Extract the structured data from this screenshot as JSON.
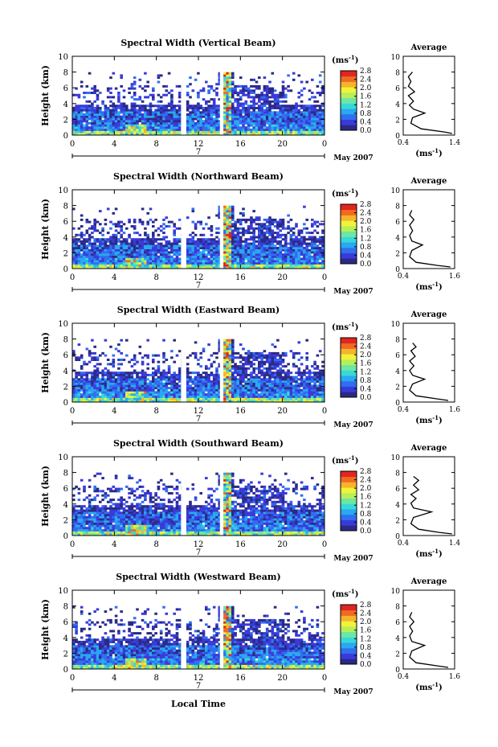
{
  "figure": {
    "xlabel": "Local Time",
    "date_label": "May 2007",
    "day_label": "7",
    "colorbar_unit": "(ms",
    "colorbar_exp": "-1",
    "colorbar_ticks": [
      "0.0",
      "0.4",
      "0.8",
      "1.2",
      "1.6",
      "2.0",
      "2.4",
      "2.8"
    ],
    "colorbar_colors": [
      "#2a2a86",
      "#3a3ad8",
      "#2f6ff0",
      "#2aa8f0",
      "#38d8d8",
      "#6ee6a4",
      "#b7ef5a",
      "#f2f23a",
      "#f5b42b",
      "#f06a22",
      "#e0261e"
    ],
    "avg_title": "Average",
    "avg_unit_open": "(ms",
    "avg_unit_exp": "-1",
    "avg_unit_close": ")"
  },
  "chart_data": [
    {
      "type": "heatmap",
      "title": "Spectral Width (Vertical Beam)",
      "ylabel": "Height (km)",
      "xlabel": "Local Time",
      "x_ticks": [
        "0",
        "4",
        "8",
        "12",
        "16",
        "20",
        "0"
      ],
      "y_ticks": [
        "0",
        "2",
        "4",
        "6",
        "8",
        "10"
      ],
      "xlim": [
        0,
        24
      ],
      "ylim": [
        0,
        10
      ],
      "colorbar_range": [
        0.0,
        2.8
      ],
      "gaps_hours": [
        10.5,
        14.2
      ],
      "profile": {
        "title": "Average",
        "xlim": [
          0.4,
          1.4
        ],
        "x_ticks": [
          "0.4",
          "1.4"
        ],
        "y_ticks": [
          "0",
          "2",
          "4",
          "6",
          "8",
          "10"
        ],
        "points": [
          [
            1.35,
            0.2
          ],
          [
            1.2,
            0.4
          ],
          [
            0.75,
            0.8
          ],
          [
            0.55,
            1.5
          ],
          [
            0.58,
            2.2
          ],
          [
            0.82,
            2.8
          ],
          [
            0.6,
            3.3
          ],
          [
            0.52,
            3.8
          ],
          [
            0.6,
            4.3
          ],
          [
            0.5,
            5.0
          ],
          [
            0.62,
            5.5
          ],
          [
            0.5,
            6.2
          ],
          [
            0.55,
            6.8
          ],
          [
            0.5,
            7.4
          ],
          [
            0.58,
            8.0
          ]
        ]
      }
    },
    {
      "type": "heatmap",
      "title": "Spectral Width (Northward Beam)",
      "ylabel": "Height (km)",
      "xlabel": "Local Time",
      "x_ticks": [
        "0",
        "4",
        "8",
        "12",
        "16",
        "20",
        "0"
      ],
      "y_ticks": [
        "0",
        "2",
        "4",
        "6",
        "8",
        "10"
      ],
      "xlim": [
        0,
        24
      ],
      "ylim": [
        0,
        10
      ],
      "colorbar_range": [
        0.0,
        2.8
      ],
      "gaps_hours": [
        10.5,
        14.2
      ],
      "profile": {
        "title": "Average",
        "xlim": [
          0.4,
          1.6
        ],
        "x_ticks": [
          "0.4",
          "1.6"
        ],
        "y_ticks": [
          "0",
          "2",
          "4",
          "6",
          "8",
          "10"
        ],
        "points": [
          [
            1.5,
            0.2
          ],
          [
            1.2,
            0.4
          ],
          [
            0.7,
            0.8
          ],
          [
            0.55,
            1.5
          ],
          [
            0.6,
            2.3
          ],
          [
            0.85,
            3.0
          ],
          [
            0.6,
            3.5
          ],
          [
            0.55,
            4.2
          ],
          [
            0.62,
            4.8
          ],
          [
            0.55,
            5.5
          ],
          [
            0.65,
            6.2
          ],
          [
            0.55,
            6.8
          ],
          [
            0.6,
            7.4
          ]
        ]
      }
    },
    {
      "type": "heatmap",
      "title": "Spectral Width (Eastward Beam)",
      "ylabel": "Height (km)",
      "xlabel": "Local Time",
      "x_ticks": [
        "0",
        "4",
        "8",
        "12",
        "16",
        "20",
        "0"
      ],
      "y_ticks": [
        "0",
        "2",
        "4",
        "6",
        "8",
        "10"
      ],
      "xlim": [
        0,
        24
      ],
      "ylim": [
        0,
        10
      ],
      "colorbar_range": [
        0.0,
        2.8
      ],
      "gaps_hours": [
        10.5,
        14.2
      ],
      "profile": {
        "title": "Average",
        "xlim": [
          0.4,
          1.6
        ],
        "x_ticks": [
          "0.4",
          "1.6"
        ],
        "y_ticks": [
          "0",
          "2",
          "4",
          "6",
          "8",
          "10"
        ],
        "points": [
          [
            1.45,
            0.2
          ],
          [
            1.2,
            0.4
          ],
          [
            0.7,
            0.8
          ],
          [
            0.55,
            1.5
          ],
          [
            0.62,
            2.3
          ],
          [
            0.9,
            2.9
          ],
          [
            0.62,
            3.4
          ],
          [
            0.55,
            4.0
          ],
          [
            0.65,
            4.6
          ],
          [
            0.55,
            5.2
          ],
          [
            0.68,
            5.8
          ],
          [
            0.58,
            6.5
          ],
          [
            0.7,
            7.0
          ],
          [
            0.62,
            7.5
          ]
        ]
      }
    },
    {
      "type": "heatmap",
      "title": "Spectral Width (Southward Beam)",
      "ylabel": "Height (km)",
      "xlabel": "Local Time",
      "x_ticks": [
        "0",
        "4",
        "8",
        "12",
        "16",
        "20",
        "0"
      ],
      "y_ticks": [
        "0",
        "2",
        "4",
        "6",
        "8",
        "10"
      ],
      "xlim": [
        0,
        24
      ],
      "ylim": [
        0,
        10
      ],
      "colorbar_range": [
        0.0,
        2.8
      ],
      "gaps_hours": [
        10.5,
        14.2
      ],
      "profile": {
        "title": "Average",
        "xlim": [
          0.4,
          1.4
        ],
        "x_ticks": [
          "0.4",
          "1.4"
        ],
        "y_ticks": [
          "0",
          "2",
          "4",
          "6",
          "8",
          "10"
        ],
        "points": [
          [
            1.35,
            0.2
          ],
          [
            1.1,
            0.4
          ],
          [
            0.7,
            0.8
          ],
          [
            0.55,
            1.5
          ],
          [
            0.6,
            2.3
          ],
          [
            0.95,
            3.0
          ],
          [
            0.6,
            3.5
          ],
          [
            0.55,
            4.1
          ],
          [
            0.65,
            4.7
          ],
          [
            0.55,
            5.2
          ],
          [
            0.7,
            5.8
          ],
          [
            0.6,
            6.4
          ],
          [
            0.7,
            7.0
          ],
          [
            0.6,
            7.5
          ]
        ]
      }
    },
    {
      "type": "heatmap",
      "title": "Spectral Width (Westward Beam)",
      "ylabel": "Height (km)",
      "xlabel": "Local Time",
      "x_ticks": [
        "0",
        "4",
        "8",
        "12",
        "16",
        "20",
        "0"
      ],
      "y_ticks": [
        "0",
        "2",
        "4",
        "6",
        "8",
        "10"
      ],
      "xlim": [
        0,
        24
      ],
      "ylim": [
        0,
        10
      ],
      "colorbar_range": [
        0.0,
        2.8
      ],
      "gaps_hours": [
        10.5,
        14.2
      ],
      "profile": {
        "title": "Average",
        "xlim": [
          0.4,
          1.6
        ],
        "x_ticks": [
          "0.4",
          "1.6"
        ],
        "y_ticks": [
          "0",
          "2",
          "4",
          "6",
          "8",
          "10"
        ],
        "points": [
          [
            1.45,
            0.2
          ],
          [
            1.2,
            0.4
          ],
          [
            0.7,
            0.8
          ],
          [
            0.55,
            1.5
          ],
          [
            0.6,
            2.3
          ],
          [
            0.9,
            3.0
          ],
          [
            0.6,
            3.5
          ],
          [
            0.55,
            4.2
          ],
          [
            0.62,
            4.8
          ],
          [
            0.55,
            5.4
          ],
          [
            0.65,
            6.0
          ],
          [
            0.55,
            6.6
          ],
          [
            0.6,
            7.2
          ]
        ]
      }
    }
  ]
}
